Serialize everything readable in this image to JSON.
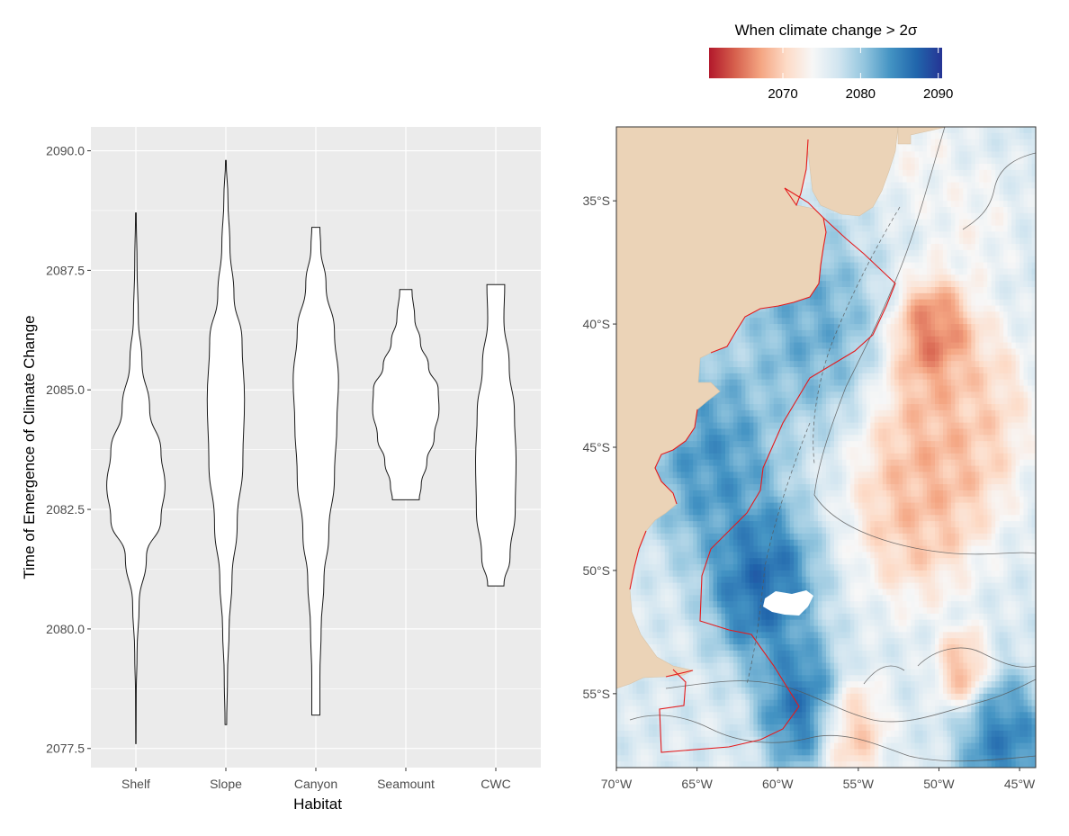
{
  "chart_data": [
    {
      "type": "violin",
      "title": "",
      "xlabel": "Habitat",
      "ylabel": "Time of Emergence of Climate Change",
      "ylim": [
        2077.1,
        2090.5
      ],
      "yticks": [
        2077.5,
        2080.0,
        2082.5,
        2085.0,
        2087.5,
        2090.0
      ],
      "ytick_labels": [
        "2077.5",
        "2080.0",
        "2082.5",
        "2085.0",
        "2087.5",
        "2090.0"
      ],
      "grid": true,
      "fill": "#ffffff",
      "categories": [
        "Shelf",
        "Slope",
        "Canyon",
        "Seamount",
        "CWC"
      ],
      "violins": [
        {
          "category": "Shelf",
          "min": 2077.6,
          "max": 2088.7,
          "profile": [
            [
              2077.6,
              0.005
            ],
            [
              2078.6,
              0.01
            ],
            [
              2079.5,
              0.03
            ],
            [
              2080.5,
              0.08
            ],
            [
              2081.5,
              0.26
            ],
            [
              2082.3,
              0.62
            ],
            [
              2083.0,
              0.72
            ],
            [
              2083.7,
              0.62
            ],
            [
              2084.6,
              0.34
            ],
            [
              2085.6,
              0.15
            ],
            [
              2086.5,
              0.06
            ],
            [
              2087.6,
              0.03
            ],
            [
              2088.7,
              0.01
            ]
          ]
        },
        {
          "category": "Slope",
          "min": 2078.0,
          "max": 2089.8,
          "profile": [
            [
              2078.0,
              0.02
            ],
            [
              2079.0,
              0.04
            ],
            [
              2080.0,
              0.08
            ],
            [
              2081.0,
              0.15
            ],
            [
              2082.2,
              0.28
            ],
            [
              2083.5,
              0.42
            ],
            [
              2084.8,
              0.46
            ],
            [
              2086.0,
              0.4
            ],
            [
              2087.0,
              0.2
            ],
            [
              2088.0,
              0.1
            ],
            [
              2089.0,
              0.05
            ],
            [
              2089.8,
              0.01
            ]
          ]
        },
        {
          "category": "Canyon",
          "min": 2078.2,
          "max": 2088.4,
          "profile": [
            [
              2078.2,
              0.1
            ],
            [
              2079.0,
              0.1
            ],
            [
              2080.0,
              0.13
            ],
            [
              2081.0,
              0.2
            ],
            [
              2082.0,
              0.32
            ],
            [
              2083.2,
              0.46
            ],
            [
              2084.3,
              0.52
            ],
            [
              2085.2,
              0.56
            ],
            [
              2086.2,
              0.46
            ],
            [
              2087.2,
              0.25
            ],
            [
              2088.0,
              0.12
            ],
            [
              2088.4,
              0.1
            ]
          ]
        },
        {
          "category": "Seamount",
          "min": 2082.7,
          "max": 2087.1,
          "profile": [
            [
              2082.7,
              0.33
            ],
            [
              2083.0,
              0.38
            ],
            [
              2083.5,
              0.52
            ],
            [
              2084.0,
              0.7
            ],
            [
              2084.6,
              0.82
            ],
            [
              2085.0,
              0.8
            ],
            [
              2085.5,
              0.56
            ],
            [
              2086.0,
              0.36
            ],
            [
              2086.5,
              0.22
            ],
            [
              2087.1,
              0.15
            ]
          ]
        },
        {
          "category": "CWC",
          "min": 2080.9,
          "max": 2087.2,
          "profile": [
            [
              2080.9,
              0.2
            ],
            [
              2081.5,
              0.35
            ],
            [
              2082.5,
              0.48
            ],
            [
              2083.5,
              0.5
            ],
            [
              2084.5,
              0.46
            ],
            [
              2085.5,
              0.33
            ],
            [
              2086.5,
              0.2
            ],
            [
              2087.2,
              0.22
            ]
          ]
        }
      ]
    },
    {
      "type": "heatmap",
      "title": "",
      "legend_title": "When climate change > 2σ",
      "legend_ticks": [
        2070,
        2080,
        2090
      ],
      "legend_range": [
        2060.5,
        2090.5
      ],
      "colorscale": [
        "#b2182b",
        "#d6604d",
        "#f4a582",
        "#fddbc7",
        "#f7f7f7",
        "#d1e5f0",
        "#92c5de",
        "#4393c3",
        "#2166ac",
        "#253494"
      ],
      "land_color": "#ebd3b7",
      "boundary_color": "#e41a1c",
      "xlim": [
        -70.0,
        -44.0
      ],
      "ylim": [
        -58.0,
        -32.0
      ],
      "xticks": [
        -70,
        -65,
        -60,
        -55,
        -50,
        -45
      ],
      "xtick_labels": [
        "70°W",
        "65°W",
        "60°W",
        "55°W",
        "50°W",
        "45°W"
      ],
      "yticks": [
        -35,
        -40,
        -45,
        -50,
        -55
      ],
      "ytick_labels": [
        "35°S",
        "40°S",
        "45°S",
        "50°S",
        "55°S"
      ],
      "hotspots": [
        {
          "lon": -50.2,
          "lat": -40.5,
          "value": 2061,
          "spread": 1.8
        },
        {
          "lon": -49.5,
          "lat": -44.5,
          "value": 2066,
          "spread": 3.2
        },
        {
          "lon": -51.5,
          "lat": -47.5,
          "value": 2067,
          "spread": 2.8
        },
        {
          "lon": -47.5,
          "lat": -43.0,
          "value": 2070,
          "spread": 2.2
        },
        {
          "lon": -55.5,
          "lat": -56.5,
          "value": 2067,
          "spread": 1.6
        },
        {
          "lon": -48.5,
          "lat": -54.0,
          "value": 2066,
          "spread": 1.2
        },
        {
          "lon": -48.0,
          "lat": -36.0,
          "value": 2073,
          "spread": 2.0
        },
        {
          "lon": -51.5,
          "lat": -33.0,
          "value": 2073,
          "spread": 1.8
        },
        {
          "lon": -61.0,
          "lat": -50.5,
          "value": 2090,
          "spread": 2.5
        },
        {
          "lon": -58.5,
          "lat": -55.5,
          "value": 2089,
          "spread": 2.0
        },
        {
          "lon": -64.0,
          "lat": -45.5,
          "value": 2086,
          "spread": 3.0
        },
        {
          "lon": -46.0,
          "lat": -57.0,
          "value": 2088,
          "spread": 2.0
        },
        {
          "lon": -58.0,
          "lat": -40.0,
          "value": 2084,
          "spread": 3.0
        }
      ]
    }
  ]
}
